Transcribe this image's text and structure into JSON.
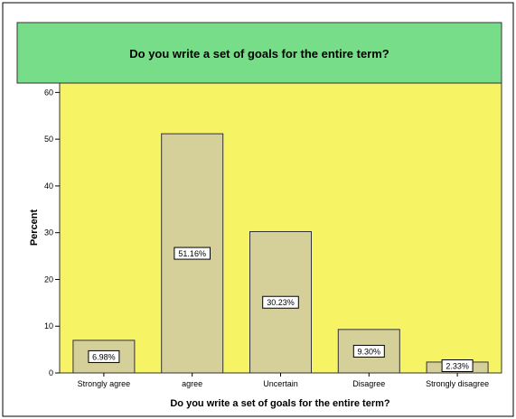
{
  "chart_data": {
    "type": "bar",
    "title": "Do you write a set of goals for the entire term?",
    "xlabel": "Do you write a set of goals for the entire term?",
    "ylabel": "Percent",
    "categories": [
      "Strongly agree",
      "agree",
      "Uncertain",
      "Disagree",
      "Strongly disagree"
    ],
    "values": [
      6.98,
      51.16,
      30.23,
      9.3,
      2.33
    ],
    "data_labels": [
      "6.98%",
      "51.16%",
      "30.23%",
      "9.30%",
      "2.33%"
    ],
    "ylim": [
      0,
      62
    ],
    "yticks": [
      0,
      10,
      20,
      30,
      40,
      50,
      60
    ],
    "grid": false,
    "legend": "none",
    "colors": {
      "title_band": "#77dd88",
      "plot_background": "#f6f365",
      "bar_fill": "#d5cf99",
      "bar_stroke": "#333333",
      "label_box": "#ffffff"
    }
  }
}
